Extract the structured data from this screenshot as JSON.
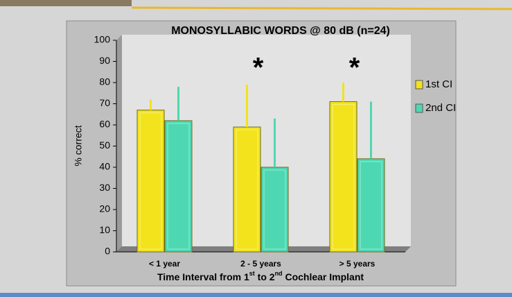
{
  "chart_data": {
    "type": "bar",
    "title": "MONOSYLLABIC WORDS @ 80 dB (n=24)",
    "y_label": "% correct",
    "x_label_parts": [
      "Time Interval from 1",
      "st",
      " to 2",
      "nd",
      " Cochlear Implant"
    ],
    "categories": [
      "< 1 year",
      "2 - 5 years",
      "> 5 years"
    ],
    "series": [
      {
        "name": "1st CI",
        "color": "#f2e31c",
        "values": [
          67,
          59,
          71
        ],
        "errors": [
          5,
          20,
          9
        ]
      },
      {
        "name": "2nd CI",
        "color": "#4ed8b2",
        "values": [
          62,
          40,
          44
        ],
        "errors": [
          16,
          23,
          27
        ]
      }
    ],
    "annotations": [
      {
        "text": "*",
        "category": "2 - 5 years"
      },
      {
        "text": "*",
        "category": "> 5 years"
      }
    ],
    "ylim": [
      0,
      100
    ],
    "yticks": [
      0,
      10,
      20,
      30,
      40,
      50,
      60,
      70,
      80,
      90,
      100
    ],
    "legend": "right"
  }
}
